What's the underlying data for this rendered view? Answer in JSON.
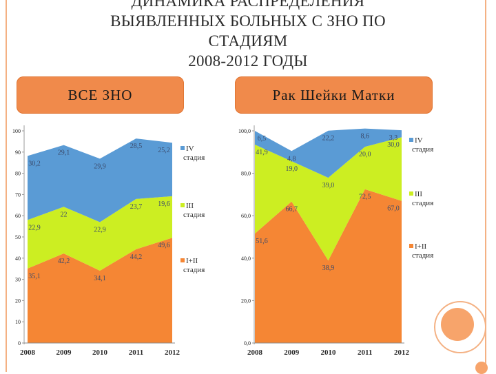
{
  "title_lines": [
    "ДИНАМИКА РАСПРЕДЕЛЕНИЯ",
    "ВЫЯВЛЕННЫХ БОЛЬНЫХ С ЗНО ПО",
    "СТАДИЯМ",
    "2008-2012 ГОДЫ"
  ],
  "left_tab": "ВСЕ ЗНО",
  "right_tab": "Рак Шейки Матки",
  "colors": {
    "stage_12": "#f58634",
    "stage_3": "#ccee22",
    "stage_4": "#5a9bd5",
    "accent": "#f08a4b"
  },
  "chart_data": [
    {
      "type": "area",
      "stacked": true,
      "x": [
        "2008",
        "2009",
        "2010",
        "2011",
        "2012"
      ],
      "ylim": [
        0,
        100
      ],
      "yticks": [
        "0",
        "10",
        "20",
        "30",
        "40",
        "50",
        "60",
        "70",
        "80",
        "90",
        "100"
      ],
      "series": [
        {
          "name": "I+II стадия",
          "name_lines": [
            "I+II",
            "стадия"
          ],
          "color_key": "stage_12",
          "values": [
            35.1,
            42.2,
            34.1,
            44.2,
            49.6
          ],
          "labels": [
            "35,1",
            "42,2",
            "34,1",
            "44,2",
            "49,6"
          ]
        },
        {
          "name": "III стадия",
          "name_lines": [
            "III",
            "стадия"
          ],
          "color_key": "stage_3",
          "values": [
            22.9,
            22,
            22.9,
            23.7,
            19.6
          ],
          "labels": [
            "22,9",
            "22",
            "22,9",
            "23,7",
            "19,6"
          ]
        },
        {
          "name": "IV стадия",
          "name_lines": [
            "IV",
            "стадия"
          ],
          "color_key": "stage_4",
          "values": [
            30.2,
            29.1,
            29.9,
            28.5,
            25.2
          ],
          "labels": [
            "30,2",
            "29,1",
            "29,9",
            "28,5",
            "25,2"
          ]
        }
      ]
    },
    {
      "type": "area",
      "stacked": true,
      "x": [
        "2008",
        "2009",
        "2010",
        "2011",
        "2012"
      ],
      "ylim": [
        0,
        100
      ],
      "yticks": [
        "0,0",
        "20,0",
        "40,0",
        "60,0",
        "80,0",
        "100,0"
      ],
      "series": [
        {
          "name": "I+II стадия",
          "name_lines": [
            "I+II",
            "стадия"
          ],
          "color_key": "stage_12",
          "values": [
            51.6,
            66.7,
            38.9,
            72.5,
            67.0
          ],
          "labels": [
            "51,6",
            "66,7",
            "38,9",
            "72,5",
            "67,0"
          ]
        },
        {
          "name": "III стадия",
          "name_lines": [
            "III",
            "стадия"
          ],
          "color_key": "stage_3",
          "values": [
            41.9,
            19.0,
            39.0,
            20.0,
            30.0
          ],
          "labels": [
            "41,9",
            "19,0",
            "39,0",
            "20,0",
            "30,0"
          ]
        },
        {
          "name": "IV стадия",
          "name_lines": [
            "IV",
            "стадия"
          ],
          "color_key": "stage_4",
          "values": [
            6.5,
            4.8,
            22.2,
            8.6,
            3.3
          ],
          "labels": [
            "6,5",
            "4,8",
            "22,2",
            "8,6",
            "3,3"
          ]
        }
      ]
    }
  ]
}
